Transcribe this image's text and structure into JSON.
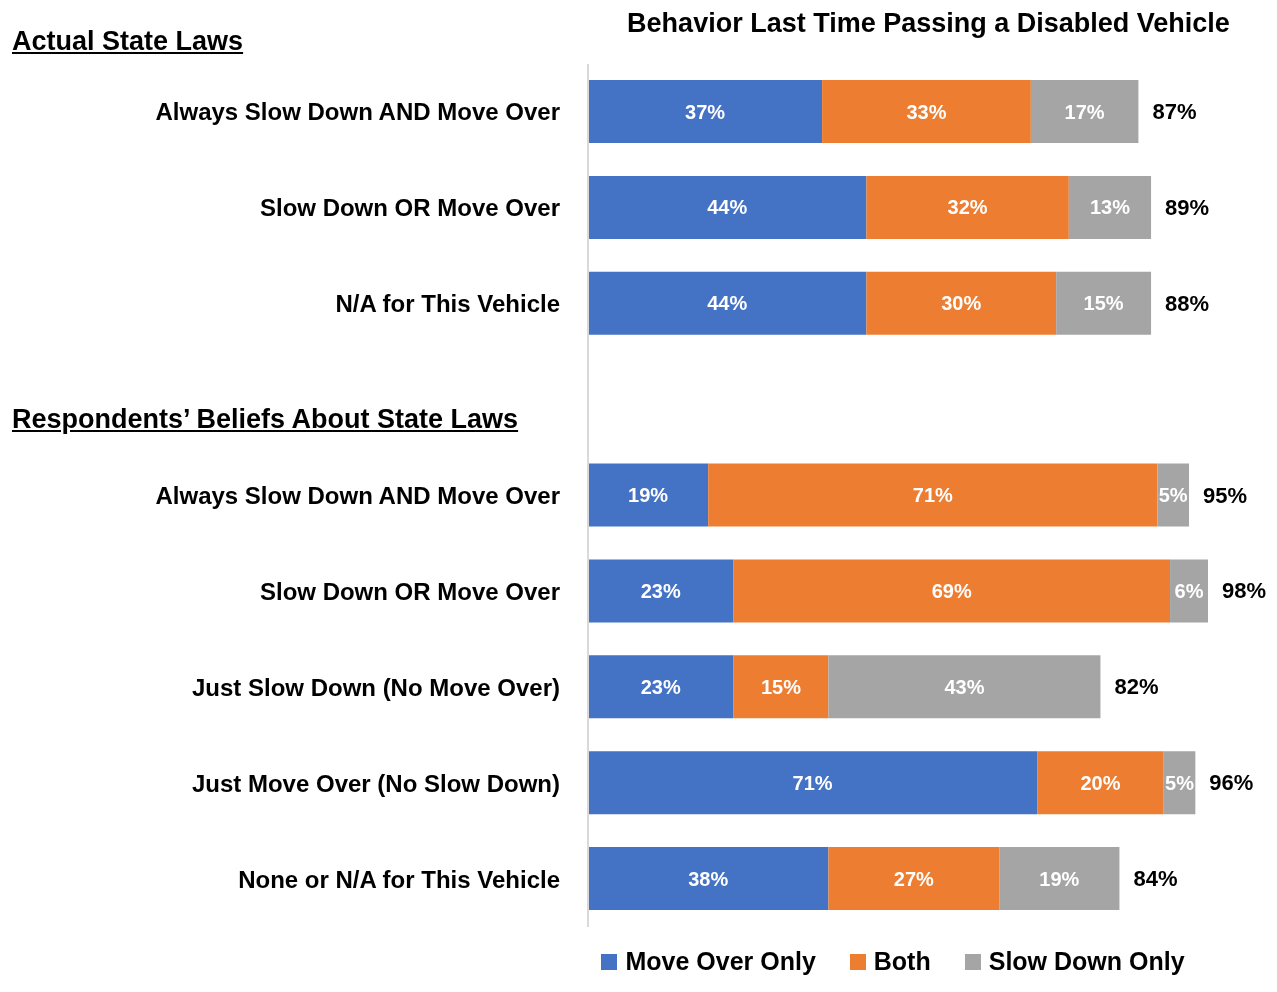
{
  "chart_data": {
    "type": "bar",
    "orientation": "horizontal",
    "stacked": true,
    "title": "Behavior Last Time Passing a Disabled Vehicle",
    "categories": [
      "Always Slow Down AND Move Over",
      "Slow Down OR Move Over",
      "N/A for This Vehicle",
      null,
      "Always Slow Down AND Move Over",
      "Slow Down OR Move Over",
      "Just Slow Down (No Move Over)",
      "Just Move Over (No Slow Down)",
      "None or N/A for This Vehicle"
    ],
    "series": [
      {
        "name": "Move Over Only",
        "color": "#4472c4",
        "values": [
          37,
          44,
          44,
          null,
          19,
          23,
          23,
          71,
          38
        ],
        "value_labels": [
          "37%",
          "44%",
          "44%",
          null,
          "19%",
          "23%",
          "23%",
          "71%",
          "38%"
        ]
      },
      {
        "name": "Both",
        "color": "#ed7d31",
        "values": [
          33,
          32,
          30,
          null,
          71,
          69,
          15,
          20,
          27
        ],
        "value_labels": [
          "33%",
          "32%",
          "30%",
          null,
          "71%",
          "69%",
          "15%",
          "20%",
          "27%"
        ]
      },
      {
        "name": "Slow Down Only",
        "color": "#a5a5a5",
        "values": [
          17,
          13,
          15,
          null,
          5,
          6,
          43,
          5,
          19
        ],
        "value_labels": [
          "17%",
          "13%",
          "15%",
          null,
          "5%",
          "6%",
          "43%",
          "5%",
          "19%"
        ]
      }
    ],
    "totals": [
      "87%",
      "89%",
      "88%",
      null,
      "95%",
      "98%",
      "82%",
      "96%",
      "84%"
    ],
    "grid": false,
    "legend": "bottom",
    "annotations": [
      "Actual State Laws",
      "Respondents’ Beliefs About State Laws"
    ]
  }
}
